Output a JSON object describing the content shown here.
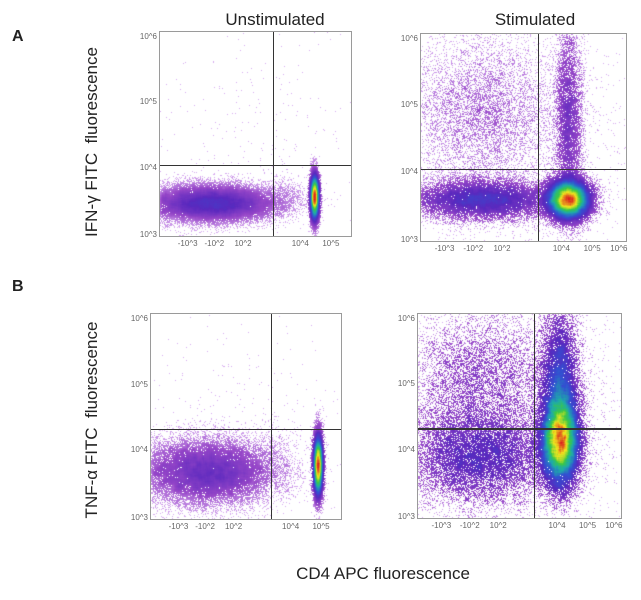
{
  "figure": {
    "panel_labels": [
      "A",
      "B"
    ],
    "column_titles": [
      "Unstimulated",
      "Stimulated"
    ],
    "y_titles": [
      "IFN-γ FITC  fluorescence",
      "TNF-α FITC  fluorescence"
    ],
    "x_title": "CD4 APC fluorescence"
  },
  "chart_data": [
    {
      "type": "scatter",
      "subtype": "flow-cytometry-density",
      "panel": "A",
      "condition": "Unstimulated",
      "xlabel": "CD4 APC fluorescence",
      "ylabel": "IFN-γ FITC  fluorescence",
      "x_ticks": [
        "-10^3",
        "-10^2",
        "10^2",
        "10^4",
        "10^5"
      ],
      "y_ticks": [
        "10^3",
        "10^4",
        "10^5",
        "10^6"
      ],
      "quadrant_gates": true,
      "populations": [
        {
          "quadrant": "lower-left",
          "note": "CD4- IFN-γ-"
        },
        {
          "quadrant": "lower-right",
          "note": "CD4+ IFN-γ- (dense)"
        }
      ]
    },
    {
      "type": "scatter",
      "subtype": "flow-cytometry-density",
      "panel": "A",
      "condition": "Stimulated",
      "xlabel": "CD4 APC fluorescence",
      "ylabel": "IFN-γ FITC  fluorescence",
      "x_ticks": [
        "-10^3",
        "-10^2",
        "10^2",
        "10^4",
        "10^5",
        "10^6"
      ],
      "y_ticks": [
        "10^3",
        "10^4",
        "10^5",
        "10^6"
      ],
      "quadrant_gates": true,
      "populations": [
        {
          "quadrant": "lower-left"
        },
        {
          "quadrant": "upper-left",
          "note": "diffuse"
        },
        {
          "quadrant": "lower-right",
          "note": "dense"
        },
        {
          "quadrant": "upper-right",
          "note": "CD4+ IFN-γ+"
        }
      ]
    },
    {
      "type": "scatter",
      "subtype": "flow-cytometry-density",
      "panel": "B",
      "condition": "Unstimulated",
      "xlabel": "CD4 APC fluorescence",
      "ylabel": "TNF-α FITC  fluorescence",
      "x_ticks": [
        "-10^3",
        "-10^2",
        "10^2",
        "10^4",
        "10^5"
      ],
      "y_ticks": [
        "10^3",
        "10^4",
        "10^5",
        "10^6"
      ],
      "quadrant_gates": true,
      "populations": [
        {
          "quadrant": "lower-left"
        },
        {
          "quadrant": "lower-right",
          "note": "dense"
        }
      ]
    },
    {
      "type": "scatter",
      "subtype": "flow-cytometry-density",
      "panel": "B",
      "condition": "Stimulated",
      "xlabel": "CD4 APC fluorescence",
      "ylabel": "TNF-α FITC  fluorescence",
      "x_ticks": [
        "-10^3",
        "-10^2",
        "10^2",
        "10^4",
        "10^5",
        "10^6"
      ],
      "y_ticks": [
        "10^3",
        "10^4",
        "10^5",
        "10^6"
      ],
      "quadrant_gates": true,
      "populations": [
        {
          "quadrant": "lower-left"
        },
        {
          "quadrant": "upper-left",
          "note": "diffuse"
        },
        {
          "quadrant": "lower-right"
        },
        {
          "quadrant": "upper-right",
          "note": "CD4+ TNF-α+ (dense)"
        }
      ]
    }
  ],
  "colors": {
    "density_low": "#c9a0ec",
    "density_mid": "#7a2fc0",
    "density_high": "#e02020"
  }
}
